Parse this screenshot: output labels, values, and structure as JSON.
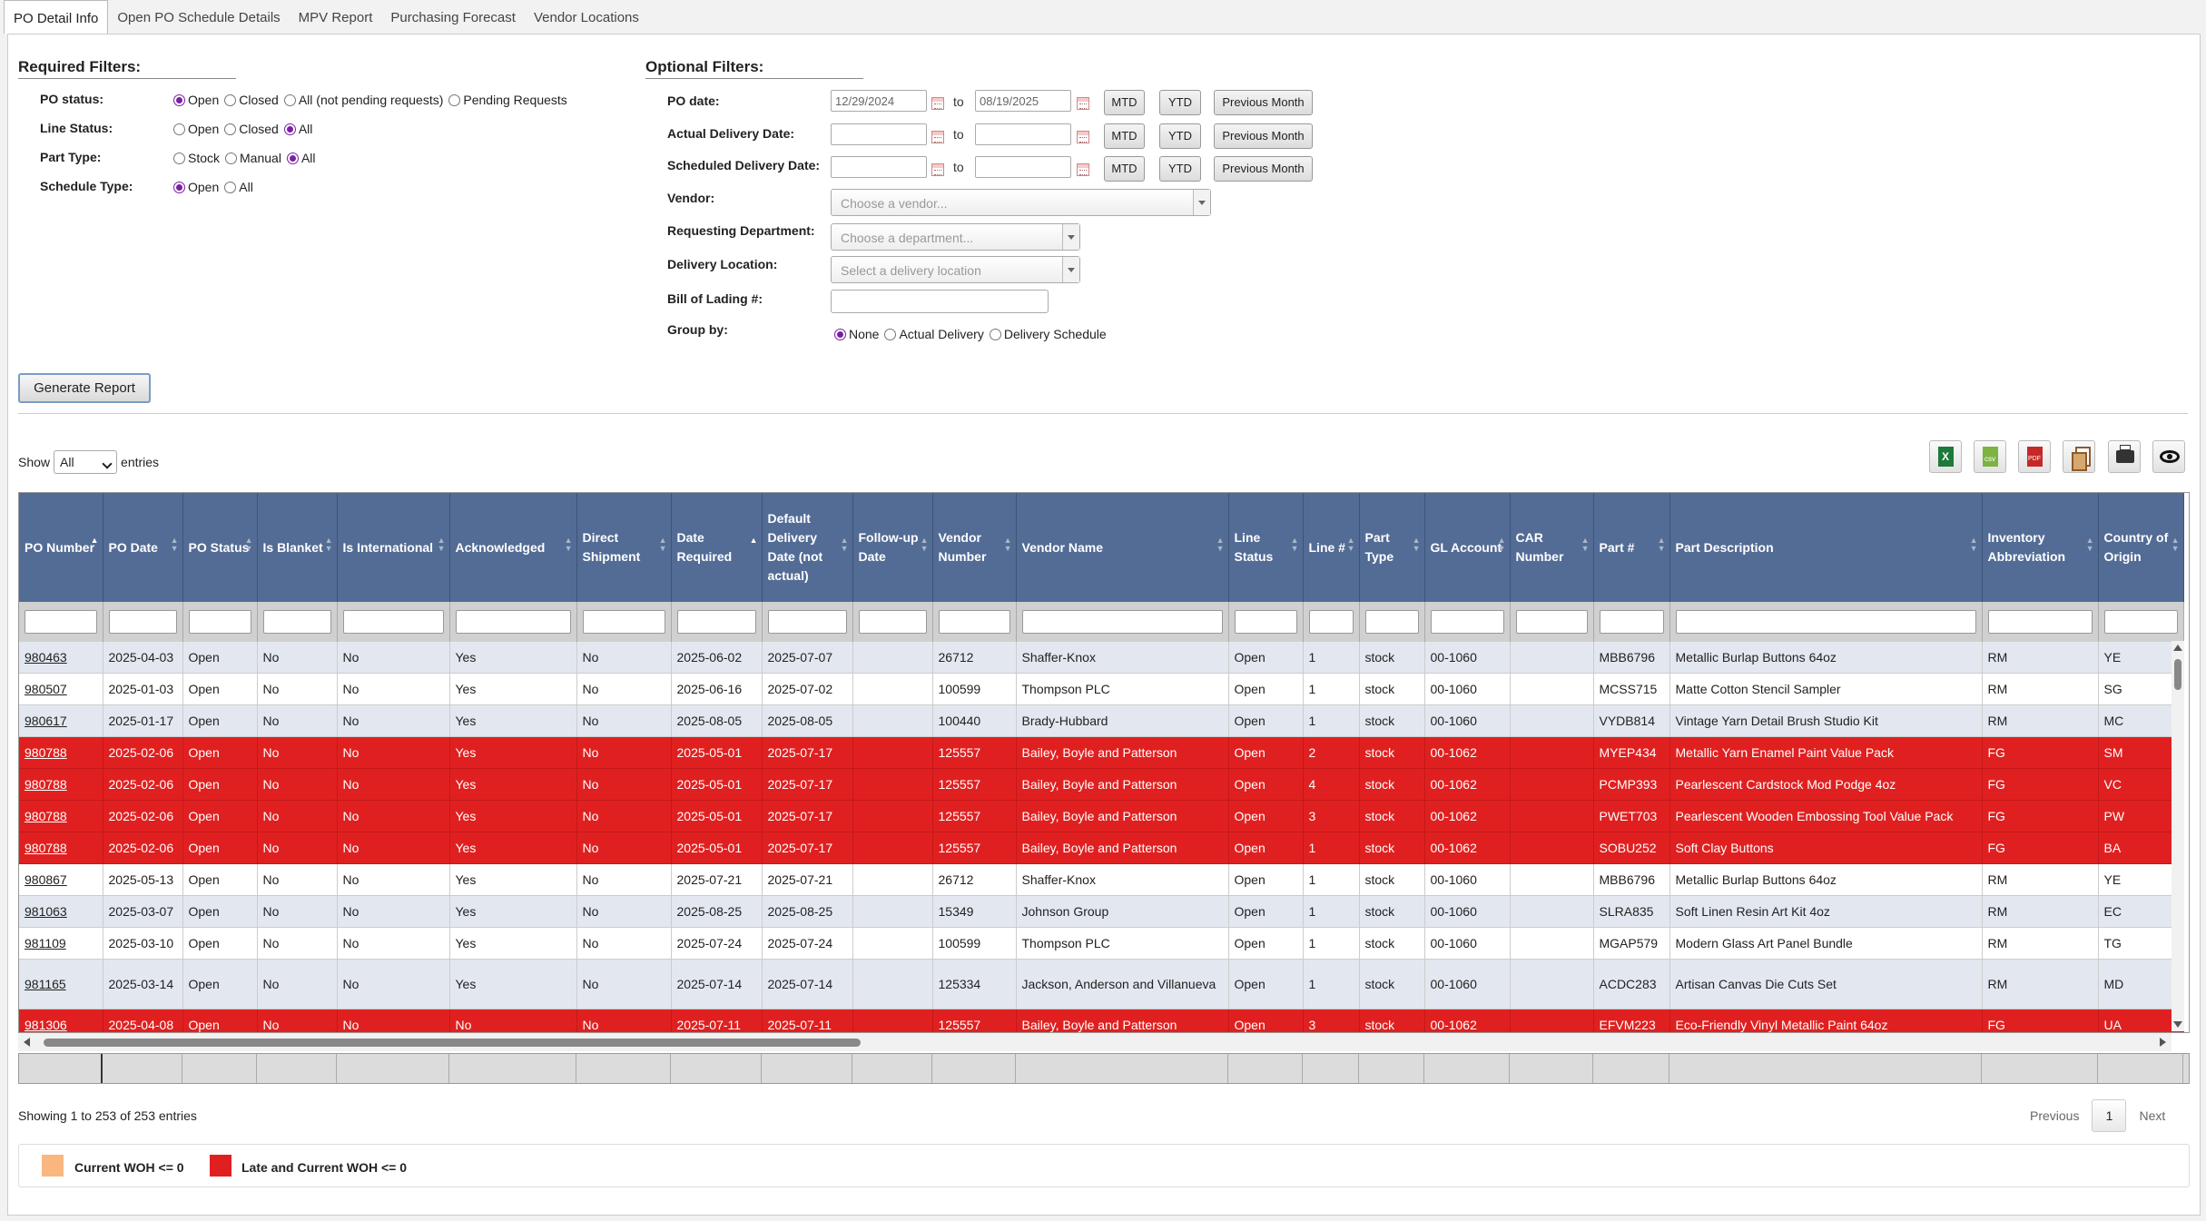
{
  "tabs": [
    "PO Detail Info",
    "Open PO Schedule Details",
    "MPV Report",
    "Purchasing Forecast",
    "Vendor Locations"
  ],
  "required": {
    "title": "Required Filters:",
    "po_status": {
      "label": "PO status:",
      "options": [
        "Open",
        "Closed",
        "All (not pending requests)",
        "Pending Requests"
      ],
      "selected": "Open"
    },
    "line_status": {
      "label": "Line Status:",
      "options": [
        "Open",
        "Closed",
        "All"
      ],
      "selected": "All"
    },
    "part_type": {
      "label": "Part Type:",
      "options": [
        "Stock",
        "Manual",
        "All"
      ],
      "selected": "All"
    },
    "schedule_type": {
      "label": "Schedule Type:",
      "options": [
        "Open",
        "All"
      ],
      "selected": "Open"
    }
  },
  "optional": {
    "title": "Optional Filters:",
    "po_date": {
      "label": "PO date:",
      "from": "12/29/2024",
      "to": "08/19/2025"
    },
    "actual_delivery": {
      "label": "Actual Delivery Date:",
      "from": "",
      "to": ""
    },
    "scheduled_delivery": {
      "label": "Scheduled Delivery Date:",
      "from": "",
      "to": ""
    },
    "to_text": "to",
    "mtd": "MTD",
    "ytd": "YTD",
    "prev_month": "Previous Month",
    "vendor": {
      "label": "Vendor:",
      "placeholder": "Choose a vendor..."
    },
    "department": {
      "label": "Requesting Department:",
      "placeholder": "Choose a department..."
    },
    "location": {
      "label": "Delivery Location:",
      "placeholder": "Select a delivery location"
    },
    "bol": {
      "label": "Bill of Lading #:",
      "value": ""
    },
    "group_by": {
      "label": "Group by:",
      "options": [
        "None",
        "Actual Delivery",
        "Delivery Schedule"
      ],
      "selected": "None"
    }
  },
  "generate_label": "Generate Report",
  "show": {
    "prefix": "Show",
    "value": "All",
    "suffix": "entries"
  },
  "columns": [
    "PO Number",
    "PO Date",
    "PO Status",
    "Is Blanket",
    "Is International",
    "Acknowledged",
    "Direct Shipment",
    "Date Required",
    "Default Delivery Date (not actual)",
    "Follow-up Date",
    "Vendor Number",
    "Vendor Name",
    "Line Status",
    "Line #",
    "Part Type",
    "GL Account",
    "CAR Number",
    "Part #",
    "Part Description",
    "Inventory Abbreviation",
    "Country of Origin"
  ],
  "rows": [
    {
      "style": "alt",
      "cells": [
        "980463",
        "2025-04-03",
        "Open",
        "No",
        "No",
        "Yes",
        "No",
        "2025-06-02",
        "2025-07-07",
        "",
        "26712",
        "Shaffer-Knox",
        "Open",
        "1",
        "stock",
        "00-1060",
        "",
        "MBB6796",
        "Metallic Burlap Buttons 64oz",
        "RM",
        "YE"
      ]
    },
    {
      "style": "plain",
      "cells": [
        "980507",
        "2025-01-03",
        "Open",
        "No",
        "No",
        "Yes",
        "No",
        "2025-06-16",
        "2025-07-02",
        "",
        "100599",
        "Thompson PLC",
        "Open",
        "1",
        "stock",
        "00-1060",
        "",
        "MCSS715",
        "Matte Cotton Stencil Sampler",
        "RM",
        "SG"
      ]
    },
    {
      "style": "alt",
      "cells": [
        "980617",
        "2025-01-17",
        "Open",
        "No",
        "No",
        "Yes",
        "No",
        "2025-08-05",
        "2025-08-05",
        "",
        "100440",
        "Brady-Hubbard",
        "Open",
        "1",
        "stock",
        "00-1060",
        "",
        "VYDB814",
        "Vintage Yarn Detail Brush Studio Kit",
        "RM",
        "MC"
      ]
    },
    {
      "style": "late",
      "cells": [
        "980788",
        "2025-02-06",
        "Open",
        "No",
        "No",
        "Yes",
        "No",
        "2025-05-01",
        "2025-07-17",
        "",
        "125557",
        "Bailey, Boyle and Patterson",
        "Open",
        "2",
        "stock",
        "00-1062",
        "",
        "MYEP434",
        "Metallic Yarn Enamel Paint Value Pack",
        "FG",
        "SM"
      ]
    },
    {
      "style": "late",
      "cells": [
        "980788",
        "2025-02-06",
        "Open",
        "No",
        "No",
        "Yes",
        "No",
        "2025-05-01",
        "2025-07-17",
        "",
        "125557",
        "Bailey, Boyle and Patterson",
        "Open",
        "4",
        "stock",
        "00-1062",
        "",
        "PCMP393",
        "Pearlescent Cardstock Mod Podge 4oz",
        "FG",
        "VC"
      ]
    },
    {
      "style": "late",
      "cells": [
        "980788",
        "2025-02-06",
        "Open",
        "No",
        "No",
        "Yes",
        "No",
        "2025-05-01",
        "2025-07-17",
        "",
        "125557",
        "Bailey, Boyle and Patterson",
        "Open",
        "3",
        "stock",
        "00-1062",
        "",
        "PWET703",
        "Pearlescent Wooden Embossing Tool Value Pack",
        "FG",
        "PW"
      ]
    },
    {
      "style": "late",
      "cells": [
        "980788",
        "2025-02-06",
        "Open",
        "No",
        "No",
        "Yes",
        "No",
        "2025-05-01",
        "2025-07-17",
        "",
        "125557",
        "Bailey, Boyle and Patterson",
        "Open",
        "1",
        "stock",
        "00-1062",
        "",
        "SOBU252",
        "Soft Clay Buttons",
        "FG",
        "BA"
      ]
    },
    {
      "style": "plain",
      "cells": [
        "980867",
        "2025-05-13",
        "Open",
        "No",
        "No",
        "Yes",
        "No",
        "2025-07-21",
        "2025-07-21",
        "",
        "26712",
        "Shaffer-Knox",
        "Open",
        "1",
        "stock",
        "00-1060",
        "",
        "MBB6796",
        "Metallic Burlap Buttons 64oz",
        "RM",
        "YE"
      ]
    },
    {
      "style": "alt",
      "cells": [
        "981063",
        "2025-03-07",
        "Open",
        "No",
        "No",
        "Yes",
        "No",
        "2025-08-25",
        "2025-08-25",
        "",
        "15349",
        "Johnson Group",
        "Open",
        "1",
        "stock",
        "00-1060",
        "",
        "SLRA835",
        "Soft Linen Resin Art Kit 4oz",
        "RM",
        "EC"
      ]
    },
    {
      "style": "plain",
      "cells": [
        "981109",
        "2025-03-10",
        "Open",
        "No",
        "No",
        "Yes",
        "No",
        "2025-07-24",
        "2025-07-24",
        "",
        "100599",
        "Thompson PLC",
        "Open",
        "1",
        "stock",
        "00-1060",
        "",
        "MGAP579",
        "Modern Glass Art Panel Bundle",
        "RM",
        "TG"
      ]
    },
    {
      "style": "alt tall",
      "cells": [
        "981165",
        "2025-03-14",
        "Open",
        "No",
        "No",
        "Yes",
        "No",
        "2025-07-14",
        "2025-07-14",
        "",
        "125334",
        "Jackson, Anderson and Villanueva",
        "Open",
        "1",
        "stock",
        "00-1060",
        "",
        "ACDC283",
        "Artisan Canvas Die Cuts Set",
        "RM",
        "MD"
      ]
    },
    {
      "style": "late",
      "cells": [
        "981306",
        "2025-04-08",
        "Open",
        "No",
        "No",
        "No",
        "No",
        "2025-07-11",
        "2025-07-11",
        "",
        "125557",
        "Bailey, Boyle and Patterson",
        "Open",
        "3",
        "stock",
        "00-1062",
        "",
        "EFVM223",
        "Eco-Friendly Vinyl Metallic Paint 64oz",
        "FG",
        "UA"
      ]
    }
  ],
  "info": "Showing 1 to 253 of 253 entries",
  "pager": {
    "previous": "Previous",
    "current": "1",
    "next": "Next"
  },
  "legend": [
    {
      "label": "Current WOH <= 0",
      "color": "#f9b77f"
    },
    {
      "label": "Late and Current WOH <= 0",
      "color": "#e02020"
    }
  ],
  "tools": [
    "excel-export-icon",
    "csv-export-icon",
    "pdf-export-icon",
    "copy-icon",
    "print-icon",
    "eye-icon"
  ]
}
